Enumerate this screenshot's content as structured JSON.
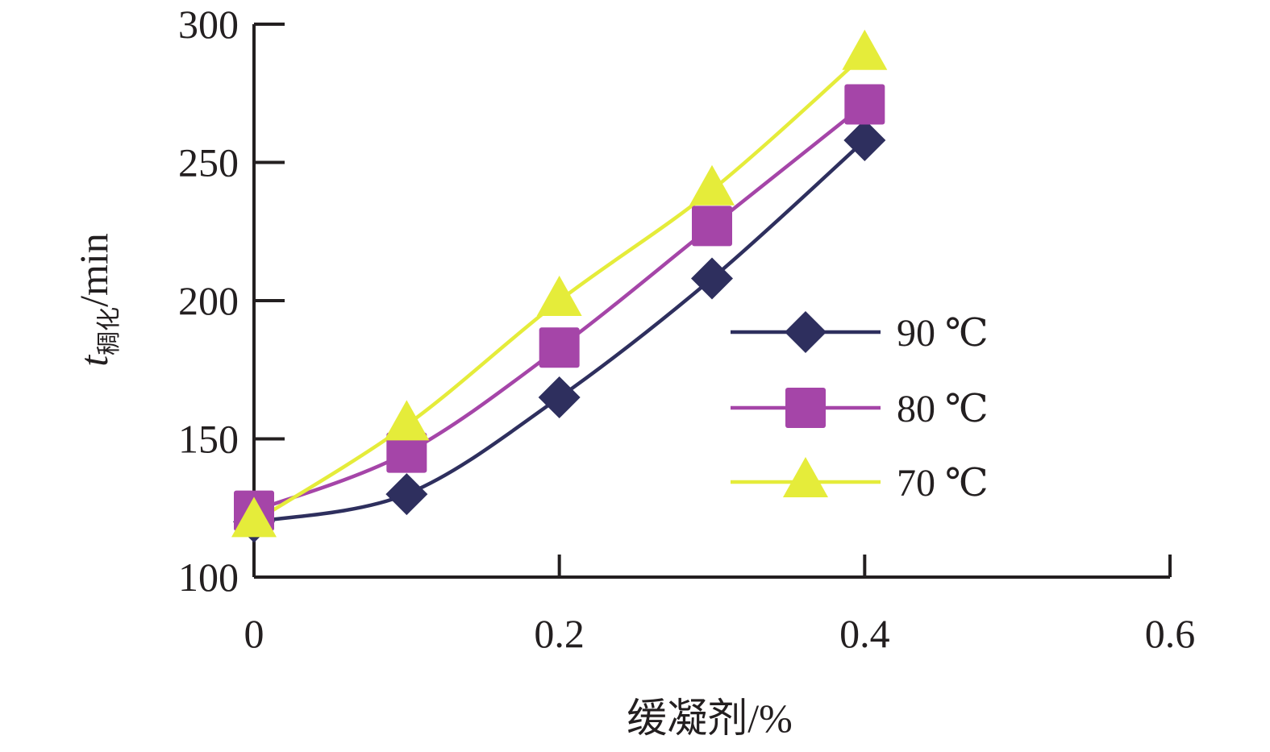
{
  "chart_data": {
    "type": "line",
    "title": "",
    "xlabel": "缓凝剂/%",
    "ylabel": {
      "main": "t",
      "subscript": "稠化",
      "unit": "/min"
    },
    "xlim": [
      0,
      0.6
    ],
    "ylim": [
      100,
      300
    ],
    "x_ticks": [
      "0",
      "0.2",
      "0.4",
      "0.6"
    ],
    "y_ticks": [
      "100",
      "150",
      "200",
      "250",
      "300"
    ],
    "x_tick_values": [
      0,
      0.2,
      0.4,
      0.6
    ],
    "y_tick_values": [
      100,
      150,
      200,
      250,
      300
    ],
    "grid": false,
    "legend_position": "right",
    "x": [
      0,
      0.1,
      0.2,
      0.3,
      0.4
    ],
    "series": [
      {
        "name": "90 ℃",
        "color": "#2e2f5e",
        "marker": "diamond",
        "values": [
          120,
          130,
          165,
          208,
          258
        ]
      },
      {
        "name": "80 ℃",
        "color": "#a545a8",
        "marker": "square",
        "values": [
          124,
          145,
          183,
          227,
          271
        ]
      },
      {
        "name": "70 ℃",
        "color": "#e5ec3a",
        "marker": "triangle",
        "values": [
          120,
          155,
          200,
          240,
          289
        ]
      }
    ]
  }
}
